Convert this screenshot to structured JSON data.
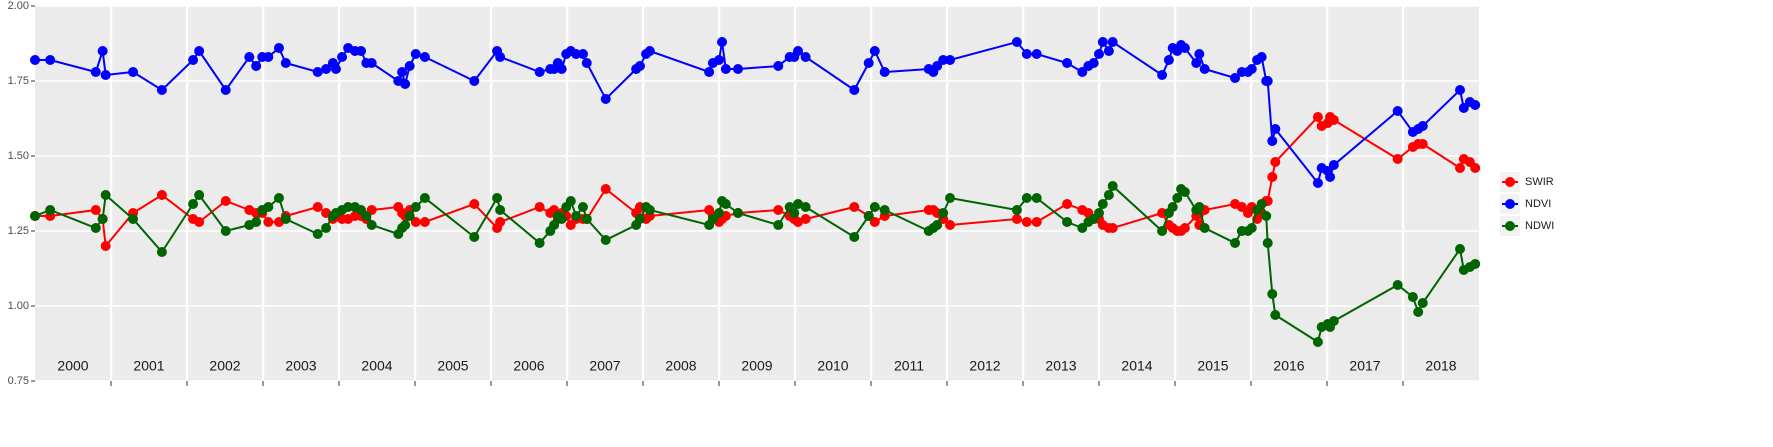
{
  "chart_data": {
    "type": "line",
    "x": [
      2000.0,
      2000.2,
      2000.8,
      2000.89,
      2000.93,
      2001.29,
      2001.67,
      2002.08,
      2002.16,
      2002.51,
      2002.82,
      2002.91,
      2002.99,
      2003.07,
      2003.21,
      2003.3,
      2003.72,
      2003.83,
      2003.92,
      2003.96,
      2004.04,
      2004.12,
      2004.21,
      2004.29,
      2004.36,
      2004.43,
      2004.78,
      2004.83,
      2004.87,
      2004.93,
      2005.01,
      2005.13,
      2005.78,
      2006.08,
      2006.12,
      2006.64,
      2006.78,
      2006.83,
      2006.88,
      2006.93,
      2006.99,
      2007.05,
      2007.12,
      2007.21,
      2007.26,
      2007.51,
      2007.91,
      2007.96,
      2008.04,
      2008.09,
      2008.87,
      2008.92,
      2009.0,
      2009.04,
      2009.09,
      2009.25,
      2009.78,
      2009.93,
      2009.99,
      2010.04,
      2010.14,
      2010.78,
      2010.97,
      2011.05,
      2011.18,
      2011.76,
      2011.82,
      2011.87,
      2011.95,
      2012.04,
      2012.92,
      2013.05,
      2013.18,
      2013.58,
      2013.78,
      2013.86,
      2013.93,
      2014.0,
      2014.05,
      2014.13,
      2014.18,
      2014.83,
      2014.92,
      2014.97,
      2015.03,
      2015.08,
      2015.13,
      2015.28,
      2015.32,
      2015.39,
      2015.79,
      2015.88,
      2015.96,
      2016.01,
      2016.08,
      2016.14,
      2016.2,
      2016.22,
      2016.28,
      2016.32,
      2016.88,
      2016.93,
      2017.01,
      2017.04,
      2017.09,
      2017.93,
      2018.13,
      2018.2,
      2018.26,
      2018.75,
      2018.8,
      2018.88,
      2018.95
    ],
    "series": [
      {
        "name": "SWIR",
        "color": "#ff0000",
        "values": [
          1.3,
          1.3,
          1.32,
          1.29,
          1.2,
          1.31,
          1.37,
          1.29,
          1.28,
          1.35,
          1.32,
          1.31,
          1.31,
          1.28,
          1.28,
          1.3,
          1.33,
          1.31,
          1.29,
          1.3,
          1.29,
          1.29,
          1.3,
          1.3,
          1.29,
          1.32,
          1.33,
          1.31,
          1.3,
          1.32,
          1.28,
          1.28,
          1.34,
          1.26,
          1.28,
          1.33,
          1.31,
          1.32,
          1.29,
          1.31,
          1.3,
          1.27,
          1.29,
          1.29,
          1.29,
          1.39,
          1.31,
          1.33,
          1.29,
          1.3,
          1.32,
          1.3,
          1.28,
          1.29,
          1.3,
          1.31,
          1.32,
          1.3,
          1.29,
          1.28,
          1.29,
          1.33,
          1.3,
          1.28,
          1.3,
          1.32,
          1.32,
          1.31,
          1.29,
          1.27,
          1.29,
          1.28,
          1.28,
          1.34,
          1.32,
          1.31,
          1.29,
          1.29,
          1.27,
          1.26,
          1.26,
          1.31,
          1.27,
          1.26,
          1.25,
          1.25,
          1.26,
          1.3,
          1.27,
          1.32,
          1.34,
          1.33,
          1.31,
          1.33,
          1.29,
          1.31,
          1.35,
          1.35,
          1.43,
          1.48,
          1.63,
          1.6,
          1.61,
          1.63,
          1.62,
          1.49,
          1.53,
          1.54,
          1.54,
          1.46,
          1.49,
          1.48,
          1.46
        ]
      },
      {
        "name": "NDVI",
        "color": "#0000ff",
        "values": [
          1.82,
          1.82,
          1.78,
          1.85,
          1.77,
          1.78,
          1.72,
          1.82,
          1.85,
          1.72,
          1.83,
          1.8,
          1.83,
          1.83,
          1.86,
          1.81,
          1.78,
          1.79,
          1.81,
          1.79,
          1.83,
          1.86,
          1.85,
          1.85,
          1.81,
          1.81,
          1.75,
          1.78,
          1.74,
          1.8,
          1.84,
          1.83,
          1.75,
          1.85,
          1.83,
          1.78,
          1.79,
          1.79,
          1.81,
          1.79,
          1.84,
          1.85,
          1.84,
          1.84,
          1.81,
          1.69,
          1.79,
          1.8,
          1.84,
          1.85,
          1.78,
          1.81,
          1.82,
          1.88,
          1.79,
          1.79,
          1.8,
          1.83,
          1.83,
          1.85,
          1.83,
          1.72,
          1.81,
          1.85,
          1.78,
          1.79,
          1.78,
          1.8,
          1.82,
          1.82,
          1.88,
          1.84,
          1.84,
          1.81,
          1.78,
          1.8,
          1.81,
          1.84,
          1.88,
          1.85,
          1.88,
          1.77,
          1.82,
          1.86,
          1.85,
          1.87,
          1.86,
          1.81,
          1.84,
          1.79,
          1.76,
          1.78,
          1.78,
          1.79,
          1.82,
          1.83,
          1.75,
          1.75,
          1.55,
          1.59,
          1.41,
          1.46,
          1.45,
          1.43,
          1.47,
          1.65,
          1.58,
          1.59,
          1.6,
          1.72,
          1.66,
          1.68,
          1.67
        ]
      },
      {
        "name": "NDWI",
        "color": "#006400",
        "values": [
          1.3,
          1.32,
          1.26,
          1.29,
          1.37,
          1.29,
          1.18,
          1.34,
          1.37,
          1.25,
          1.27,
          1.28,
          1.32,
          1.33,
          1.36,
          1.29,
          1.24,
          1.26,
          1.3,
          1.31,
          1.32,
          1.33,
          1.33,
          1.32,
          1.3,
          1.27,
          1.24,
          1.26,
          1.27,
          1.3,
          1.33,
          1.36,
          1.23,
          1.36,
          1.32,
          1.21,
          1.25,
          1.27,
          1.3,
          1.29,
          1.33,
          1.35,
          1.3,
          1.33,
          1.29,
          1.22,
          1.27,
          1.29,
          1.33,
          1.32,
          1.27,
          1.29,
          1.31,
          1.35,
          1.34,
          1.31,
          1.27,
          1.33,
          1.31,
          1.34,
          1.33,
          1.23,
          1.3,
          1.33,
          1.32,
          1.25,
          1.26,
          1.27,
          1.31,
          1.36,
          1.32,
          1.36,
          1.36,
          1.28,
          1.26,
          1.28,
          1.29,
          1.31,
          1.34,
          1.37,
          1.4,
          1.25,
          1.31,
          1.33,
          1.36,
          1.39,
          1.38,
          1.32,
          1.33,
          1.26,
          1.21,
          1.25,
          1.25,
          1.26,
          1.32,
          1.34,
          1.3,
          1.21,
          1.04,
          0.97,
          0.88,
          0.93,
          0.94,
          0.93,
          0.95,
          1.07,
          1.03,
          0.98,
          1.01,
          1.19,
          1.12,
          1.13,
          1.14
        ]
      }
    ],
    "xlim": [
      2000,
      2019
    ],
    "xticks": [
      {
        "value": 2000.5,
        "label": "2000"
      },
      {
        "value": 2001.5,
        "label": "2001"
      },
      {
        "value": 2002.5,
        "label": "2002"
      },
      {
        "value": 2003.5,
        "label": "2003"
      },
      {
        "value": 2004.5,
        "label": "2004"
      },
      {
        "value": 2005.5,
        "label": "2005"
      },
      {
        "value": 2006.5,
        "label": "2006"
      },
      {
        "value": 2007.5,
        "label": "2007"
      },
      {
        "value": 2008.5,
        "label": "2008"
      },
      {
        "value": 2009.5,
        "label": "2009"
      },
      {
        "value": 2010.5,
        "label": "2010"
      },
      {
        "value": 2011.5,
        "label": "2011"
      },
      {
        "value": 2012.5,
        "label": "2012"
      },
      {
        "value": 2013.5,
        "label": "2013"
      },
      {
        "value": 2014.5,
        "label": "2014"
      },
      {
        "value": 2015.5,
        "label": "2015"
      },
      {
        "value": 2016.5,
        "label": "2016"
      },
      {
        "value": 2017.5,
        "label": "2017"
      },
      {
        "value": 2018.5,
        "label": "2018"
      }
    ],
    "xgrid": [
      2001,
      2002,
      2003,
      2004,
      2005,
      2006,
      2007,
      2008,
      2009,
      2010,
      2011,
      2012,
      2013,
      2014,
      2015,
      2016,
      2017,
      2018
    ],
    "ylim": [
      0.75,
      2.0
    ],
    "yticks": [
      {
        "value": 0.75,
        "label": "0.75"
      },
      {
        "value": 1.0,
        "label": "1.00"
      },
      {
        "value": 1.25,
        "label": "1.25"
      },
      {
        "value": 1.5,
        "label": "1.50"
      },
      {
        "value": 1.75,
        "label": "1.75"
      },
      {
        "value": 2.0,
        "label": "2.00"
      }
    ],
    "grid": true,
    "legend": "right"
  }
}
